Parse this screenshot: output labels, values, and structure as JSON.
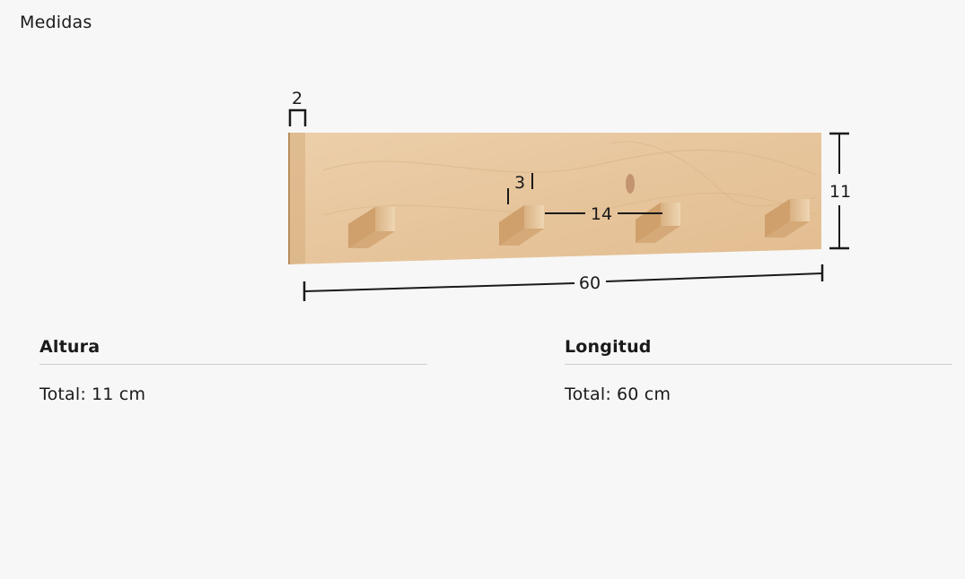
{
  "header": {
    "title": "Medidas"
  },
  "diagram": {
    "dimensions": {
      "thickness": "2",
      "hook_width": "3",
      "hook_spacing": "14",
      "height": "11",
      "length": "60"
    },
    "colors": {
      "wood": "#e6c8a0",
      "wood_dark": "#d2ab7a",
      "line": "#1a1a1a"
    }
  },
  "specs": {
    "height": {
      "heading": "Altura",
      "label": "Total:",
      "value": "11 cm"
    },
    "length": {
      "heading": "Longitud",
      "label": "Total:",
      "value": "60 cm"
    }
  }
}
